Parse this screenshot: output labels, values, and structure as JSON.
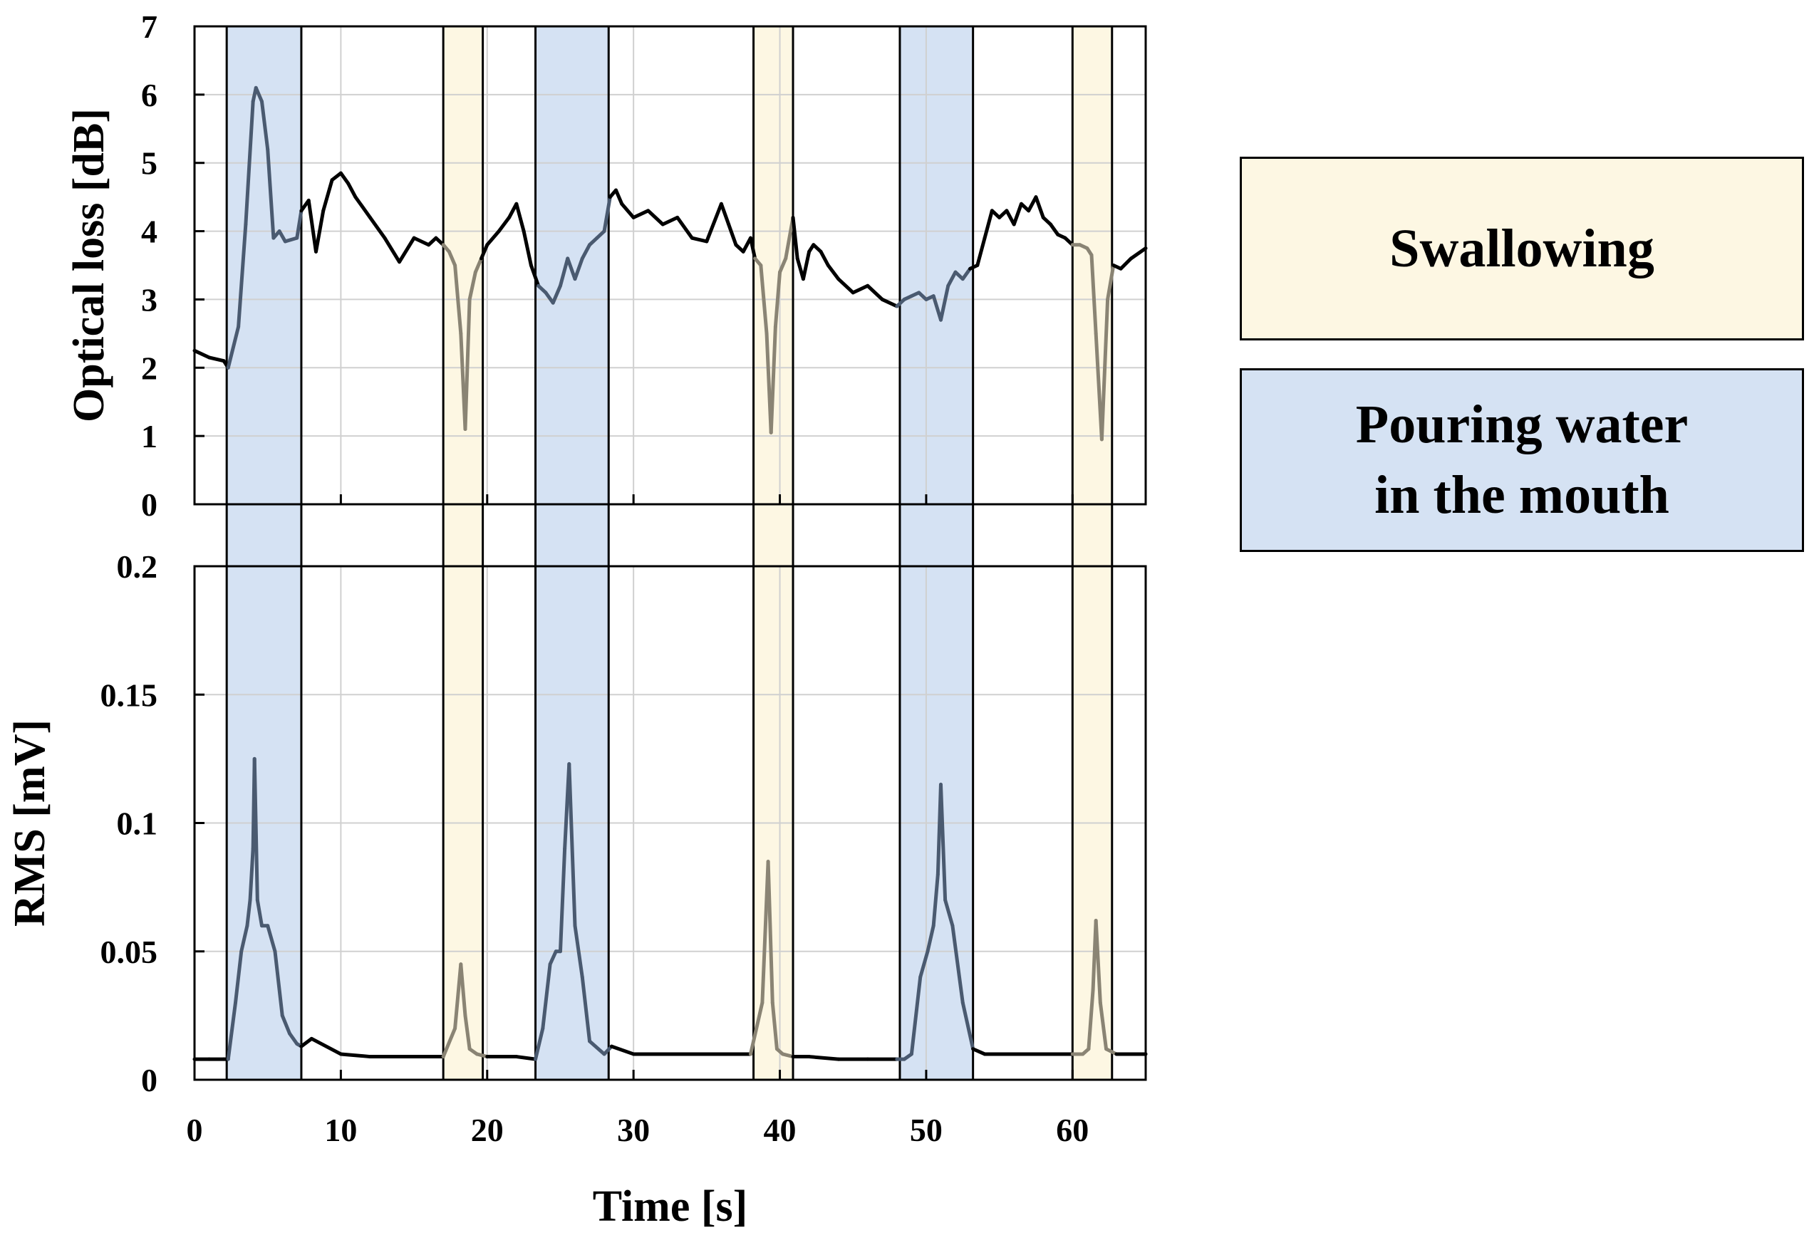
{
  "chart_data": {
    "type": "line",
    "x_axis": {
      "label": "Time [s]",
      "range": [
        0,
        65
      ],
      "ticks": [
        0,
        10,
        20,
        30,
        40,
        50,
        60
      ],
      "tick_labels": [
        "0",
        "10",
        "20",
        "30",
        "40",
        "50",
        "60"
      ]
    },
    "regions": [
      {
        "type": "pouring",
        "start": 2.2,
        "end": 7.3
      },
      {
        "type": "swallowing",
        "start": 17.0,
        "end": 19.7
      },
      {
        "type": "pouring",
        "start": 23.3,
        "end": 28.3
      },
      {
        "type": "swallowing",
        "start": 38.2,
        "end": 40.9
      },
      {
        "type": "pouring",
        "start": 48.2,
        "end": 53.2
      },
      {
        "type": "swallowing",
        "start": 60.0,
        "end": 62.7
      }
    ],
    "colors": {
      "pouring": "#d5e2f3",
      "swallowing": "#fdf7e3",
      "line": "#000000",
      "line_in_pouring": "#4a5a70",
      "line_in_swallowing": "#8a8474",
      "grid": "#d0d0d0"
    },
    "panels": [
      {
        "name": "optical-loss",
        "ylabel": "Optical loss [dB]",
        "ylim": [
          0,
          7
        ],
        "yticks": [
          0,
          1,
          2,
          3,
          4,
          5,
          6,
          7
        ],
        "ytick_labels": [
          "0",
          "1",
          "2",
          "3",
          "4",
          "5",
          "6",
          "7"
        ],
        "series": [
          {
            "name": "Optical loss",
            "x": [
              0,
              1,
              2,
              2.3,
              3,
              3.5,
              4,
              4.2,
              4.6,
              5,
              5.4,
              5.8,
              6.2,
              7,
              7.3,
              7.8,
              8.3,
              8.8,
              9.4,
              10,
              10.5,
              11,
              12,
              13,
              14,
              15,
              16,
              16.5,
              17,
              17.4,
              17.8,
              18.2,
              18.5,
              18.8,
              19.2,
              19.6,
              20,
              20.8,
              21.5,
              22,
              22.5,
              23,
              23.5,
              24,
              24.5,
              25,
              25.5,
              26,
              26.5,
              27,
              27.5,
              28,
              28.4,
              28.8,
              29.2,
              30,
              31,
              32,
              33,
              34,
              35,
              36,
              36.5,
              37,
              37.5,
              38,
              38.3,
              38.7,
              39.1,
              39.4,
              39.7,
              40,
              40.4,
              40.9,
              41.2,
              41.6,
              42,
              42.3,
              42.8,
              43.3,
              44,
              45,
              46,
              47,
              48,
              48.5,
              49,
              49.5,
              50,
              50.5,
              51,
              51.5,
              52,
              52.5,
              53,
              53.5,
              54,
              54.5,
              55,
              55.5,
              56,
              56.5,
              57,
              57.5,
              58,
              58.5,
              59,
              59.5,
              60,
              60.5,
              61,
              61.3,
              61.6,
              62,
              62.4,
              62.8,
              63.3,
              64,
              65
            ],
            "y": [
              2.25,
              2.15,
              2.1,
              2.0,
              2.6,
              4.1,
              5.9,
              6.1,
              5.9,
              5.2,
              3.9,
              4.0,
              3.85,
              3.9,
              4.3,
              4.45,
              3.7,
              4.3,
              4.75,
              4.85,
              4.7,
              4.5,
              4.2,
              3.9,
              3.55,
              3.9,
              3.8,
              3.9,
              3.8,
              3.7,
              3.5,
              2.5,
              1.1,
              3.0,
              3.4,
              3.6,
              3.8,
              4.0,
              4.2,
              4.4,
              4.0,
              3.5,
              3.2,
              3.1,
              2.95,
              3.2,
              3.6,
              3.3,
              3.6,
              3.8,
              3.9,
              4.0,
              4.5,
              4.6,
              4.4,
              4.2,
              4.3,
              4.1,
              4.2,
              3.9,
              3.85,
              4.4,
              4.1,
              3.8,
              3.7,
              3.9,
              3.6,
              3.5,
              2.5,
              1.05,
              2.6,
              3.4,
              3.6,
              4.2,
              3.6,
              3.3,
              3.7,
              3.8,
              3.7,
              3.5,
              3.3,
              3.1,
              3.2,
              3.0,
              2.9,
              3.0,
              3.05,
              3.1,
              3.0,
              3.05,
              2.7,
              3.2,
              3.4,
              3.3,
              3.45,
              3.5,
              3.9,
              4.3,
              4.2,
              4.3,
              4.1,
              4.4,
              4.3,
              4.5,
              4.2,
              4.1,
              3.95,
              3.9,
              3.8,
              3.8,
              3.75,
              3.65,
              2.5,
              0.95,
              3.0,
              3.5,
              3.45,
              3.6,
              3.75
            ]
          }
        ]
      },
      {
        "name": "rms",
        "ylabel": "RMS [mV]",
        "ylim": [
          0,
          0.2
        ],
        "yticks": [
          0,
          0.05,
          0.1,
          0.15,
          0.2
        ],
        "ytick_labels": [
          "0",
          "0.05",
          "0.1",
          "0.15",
          "0.2"
        ],
        "series": [
          {
            "name": "RMS",
            "x": [
              0,
              1,
              2,
              2.3,
              2.8,
              3.2,
              3.6,
              3.8,
              4.0,
              4.1,
              4.3,
              4.6,
              5.0,
              5.5,
              6.0,
              6.5,
              7.0,
              7.3,
              8,
              10,
              12,
              14,
              16,
              17,
              17.8,
              18.2,
              18.5,
              18.8,
              19.3,
              20,
              22,
              23.3,
              23.8,
              24.3,
              24.7,
              25.0,
              25.3,
              25.6,
              26.0,
              26.5,
              27,
              28,
              28.5,
              30,
              32,
              34,
              36,
              38,
              38.8,
              39.2,
              39.5,
              39.8,
              40.2,
              40.9,
              42,
              44,
              46,
              48,
              48.5,
              49,
              49.6,
              50.1,
              50.5,
              50.8,
              51.0,
              51.3,
              51.8,
              52.5,
              53.2,
              54,
              56,
              58,
              60,
              60.7,
              61.1,
              61.4,
              61.6,
              61.9,
              62.3,
              63,
              64,
              65
            ],
            "y": [
              0.008,
              0.008,
              0.008,
              0.008,
              0.03,
              0.05,
              0.06,
              0.07,
              0.09,
              0.125,
              0.07,
              0.06,
              0.06,
              0.05,
              0.025,
              0.018,
              0.014,
              0.013,
              0.016,
              0.01,
              0.009,
              0.009,
              0.009,
              0.009,
              0.02,
              0.045,
              0.025,
              0.012,
              0.01,
              0.009,
              0.009,
              0.008,
              0.02,
              0.045,
              0.05,
              0.05,
              0.09,
              0.123,
              0.06,
              0.04,
              0.015,
              0.01,
              0.013,
              0.01,
              0.01,
              0.01,
              0.01,
              0.01,
              0.03,
              0.085,
              0.03,
              0.012,
              0.01,
              0.009,
              0.009,
              0.008,
              0.008,
              0.008,
              0.008,
              0.01,
              0.04,
              0.05,
              0.06,
              0.08,
              0.115,
              0.07,
              0.06,
              0.03,
              0.012,
              0.01,
              0.01,
              0.01,
              0.01,
              0.01,
              0.012,
              0.035,
              0.062,
              0.03,
              0.012,
              0.01,
              0.01,
              0.01
            ]
          }
        ]
      }
    ],
    "legend": [
      {
        "label": "Swallowing",
        "type": "swallowing"
      },
      {
        "label": "Pouring water\nin the mouth",
        "type": "pouring"
      }
    ]
  }
}
